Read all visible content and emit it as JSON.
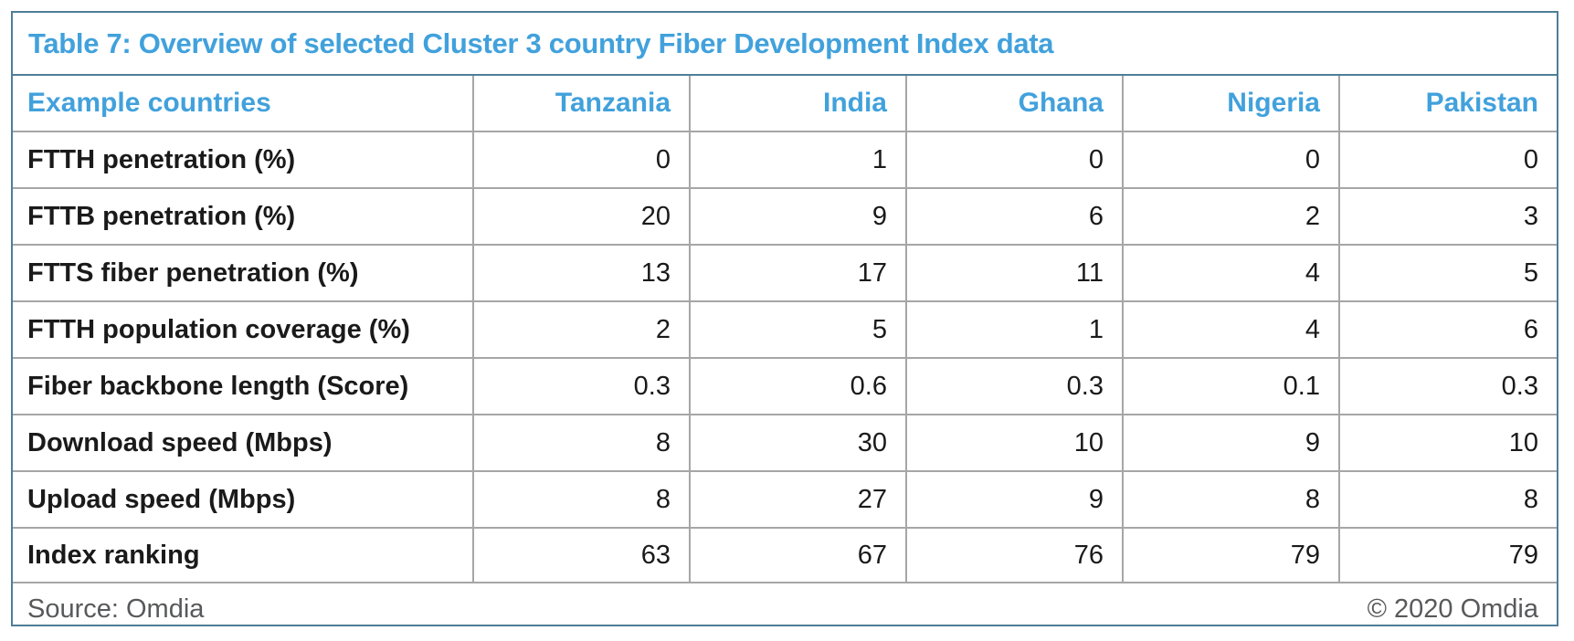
{
  "title": "Table 7: Overview of selected Cluster 3 country Fiber Development Index data",
  "colors": {
    "accent_blue": "#41A1DC",
    "outer_border": "#4F7E98",
    "inner_border": "#A6A6A6",
    "body_text": "#1A1A1A",
    "footer_text": "#58595B"
  },
  "chart_data": {
    "type": "table",
    "title": "Table 7: Overview of selected Cluster 3 country Fiber Development Index data",
    "columns": [
      "Example countries",
      "Tanzania",
      "India",
      "Ghana",
      "Nigeria",
      "Pakistan"
    ],
    "rows": [
      [
        "FTTH penetration (%)",
        0,
        1,
        0,
        0,
        0
      ],
      [
        "FTTB penetration (%)",
        20,
        9,
        6,
        2,
        3
      ],
      [
        "FTTS fiber penetration (%)",
        13,
        17,
        11,
        4,
        5
      ],
      [
        "FTTH population coverage (%)",
        2,
        5,
        1,
        4,
        6
      ],
      [
        "Fiber backbone length (Score)",
        0.3,
        0.6,
        0.3,
        0.1,
        0.3
      ],
      [
        "Download speed (Mbps)",
        8,
        30,
        10,
        9,
        10
      ],
      [
        "Upload speed (Mbps)",
        8,
        27,
        9,
        8,
        8
      ],
      [
        "Index ranking",
        63,
        67,
        76,
        79,
        79
      ]
    ]
  },
  "table": {
    "header": {
      "col0": "Example countries",
      "col1": "Tanzania",
      "col2": "India",
      "col3": "Ghana",
      "col4": "Nigeria",
      "col5": "Pakistan"
    },
    "rows": [
      {
        "label": "FTTH penetration (%)",
        "values": [
          "0",
          "1",
          "0",
          "0",
          "0"
        ]
      },
      {
        "label": "FTTB penetration (%)",
        "values": [
          "20",
          "9",
          "6",
          "2",
          "3"
        ]
      },
      {
        "label": "FTTS fiber penetration (%)",
        "values": [
          "13",
          "17",
          "11",
          "4",
          "5"
        ]
      },
      {
        "label": "FTTH population coverage (%)",
        "values": [
          "2",
          "5",
          "1",
          "4",
          "6"
        ]
      },
      {
        "label": "Fiber backbone length (Score)",
        "values": [
          "0.3",
          "0.6",
          "0.3",
          "0.1",
          "0.3"
        ]
      },
      {
        "label": "Download speed (Mbps)",
        "values": [
          "8",
          "30",
          "10",
          "9",
          "10"
        ]
      },
      {
        "label": "Upload speed (Mbps)",
        "values": [
          "8",
          "27",
          "9",
          "8",
          "8"
        ]
      },
      {
        "label": "Index ranking",
        "values": [
          "63",
          "67",
          "76",
          "79",
          "79"
        ]
      }
    ]
  },
  "footer": {
    "source": "Source: Omdia",
    "copyright": "© 2020 Omdia"
  }
}
